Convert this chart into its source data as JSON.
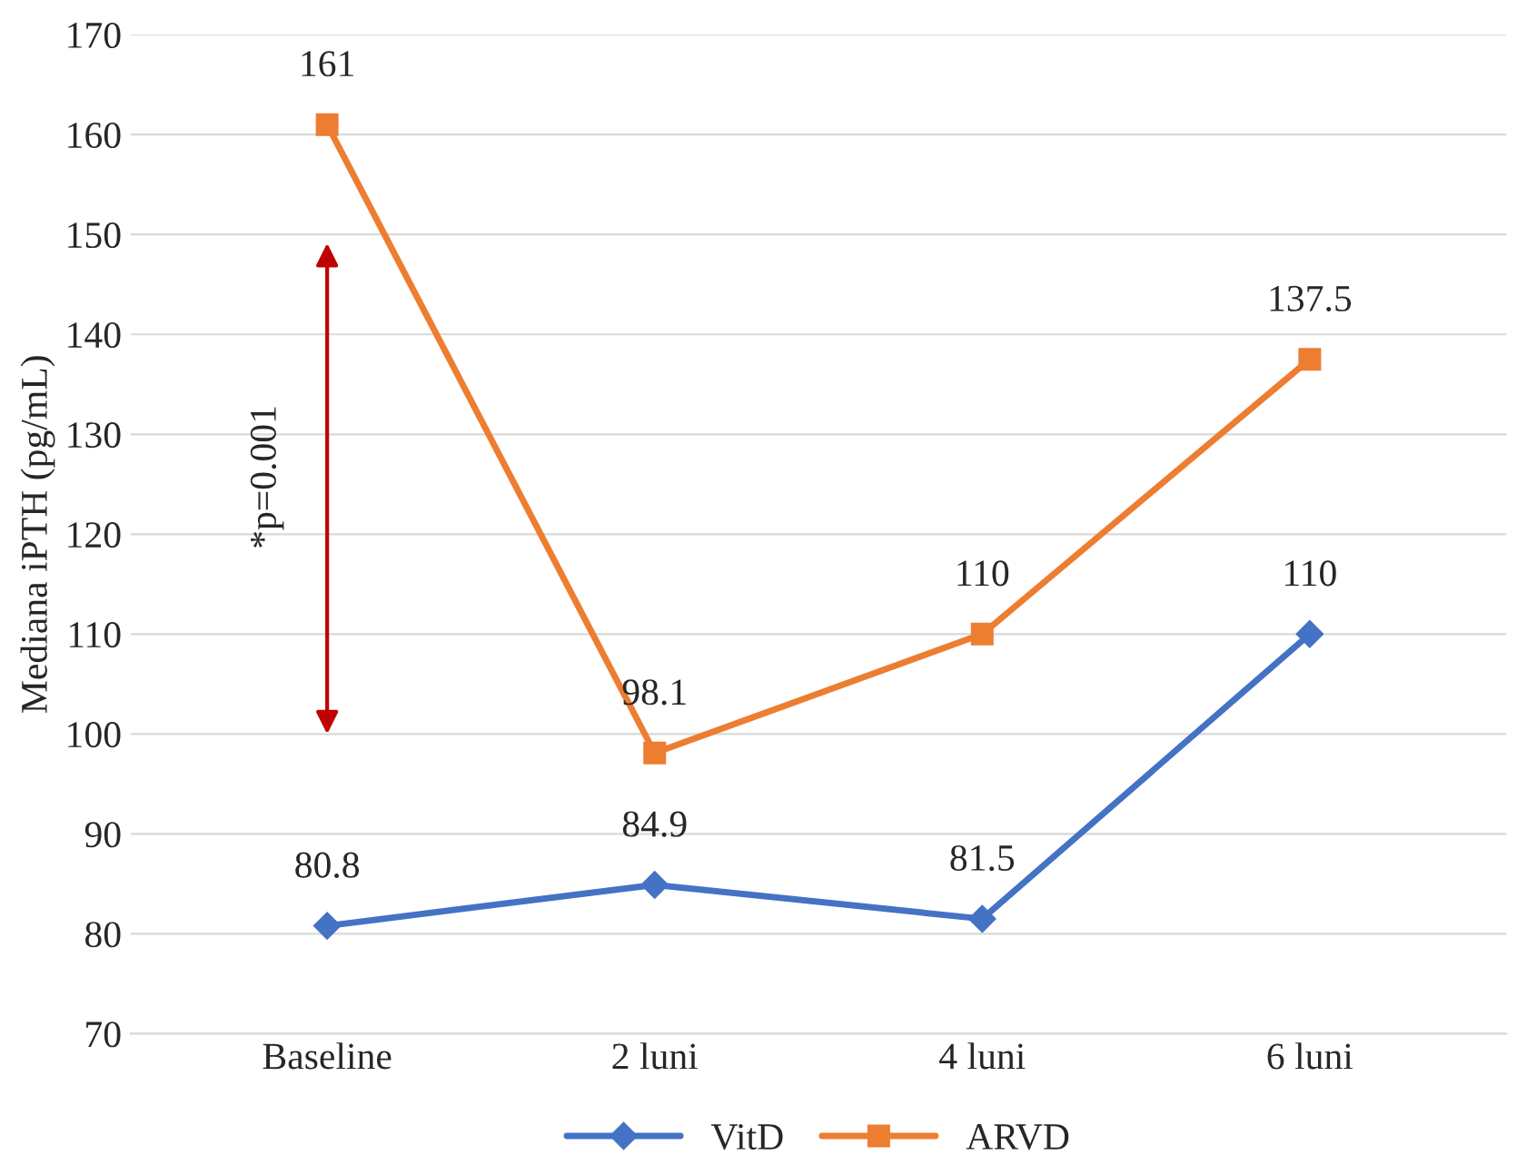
{
  "chart_data": {
    "type": "line",
    "ylabel": "Mediana iPTH (pg/mL)",
    "categories": [
      "Baseline",
      "2 luni",
      "4 luni",
      "6 luni"
    ],
    "series": [
      {
        "name": "VitD",
        "color": "#4472c4",
        "values": [
          80.8,
          84.9,
          81.5,
          110
        ],
        "marker": "diamond"
      },
      {
        "name": "ARVD",
        "color": "#ed7d31",
        "values": [
          161,
          98.1,
          110,
          137.5
        ],
        "marker": "square"
      }
    ],
    "ylim": [
      70,
      170
    ],
    "yticks": [
      70,
      80,
      90,
      100,
      110,
      120,
      130,
      140,
      150,
      160,
      170
    ],
    "grid": "y",
    "legend": "bottom",
    "data_labels": true,
    "line_style": "solid",
    "annotations": [
      "*p=0.001"
    ]
  }
}
